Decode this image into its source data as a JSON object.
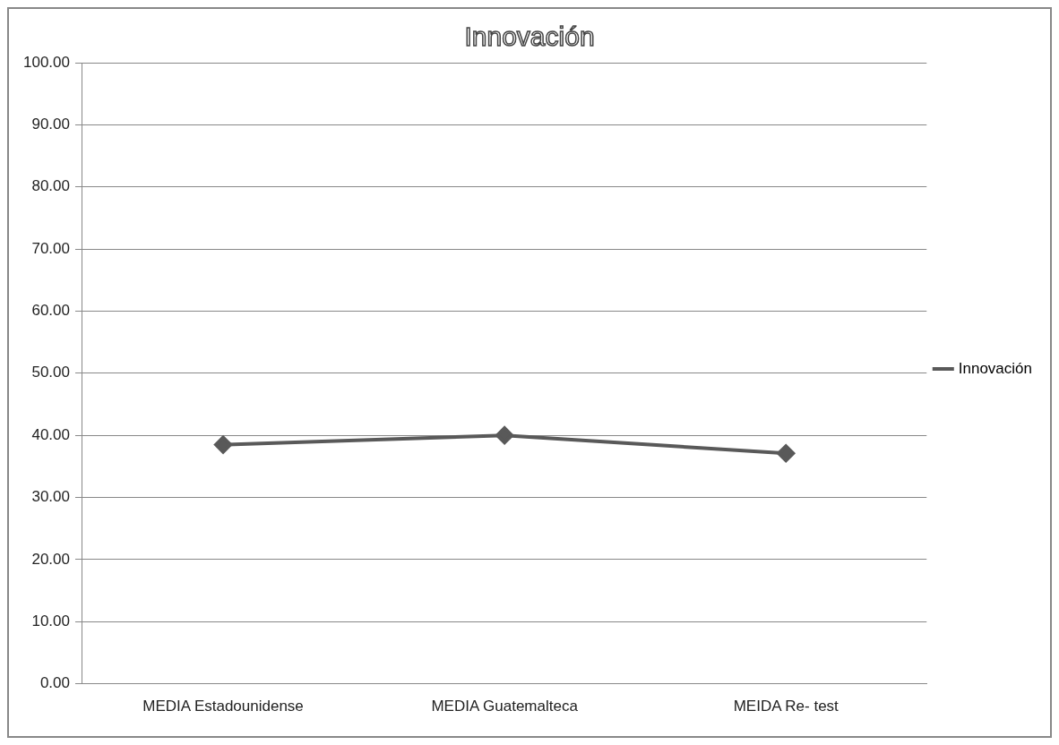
{
  "chart_data": {
    "type": "line",
    "title": "Innovación",
    "categories": [
      "MEDIA Estadounidense",
      "MEDIA Guatemalteca",
      "MEIDA Re- test"
    ],
    "series": [
      {
        "name": "Innovación",
        "color": "#595959",
        "values": [
          38.5,
          40,
          37.1
        ]
      }
    ],
    "ylim": [
      0,
      100
    ],
    "yticks": [
      {
        "value": 0,
        "label": "0.00"
      },
      {
        "value": 10,
        "label": "10.00"
      },
      {
        "value": 20,
        "label": "20.00"
      },
      {
        "value": 30,
        "label": "30.00"
      },
      {
        "value": 40,
        "label": "40.00"
      },
      {
        "value": 50,
        "label": "50.00"
      },
      {
        "value": 60,
        "label": "60.00"
      },
      {
        "value": 70,
        "label": "70.00"
      },
      {
        "value": 80,
        "label": "80.00"
      },
      {
        "value": 90,
        "label": "90.00"
      },
      {
        "value": 100,
        "label": "100.00"
      }
    ],
    "grid": "y",
    "legend": "right",
    "marker": "diamond",
    "line_style": "solid"
  }
}
